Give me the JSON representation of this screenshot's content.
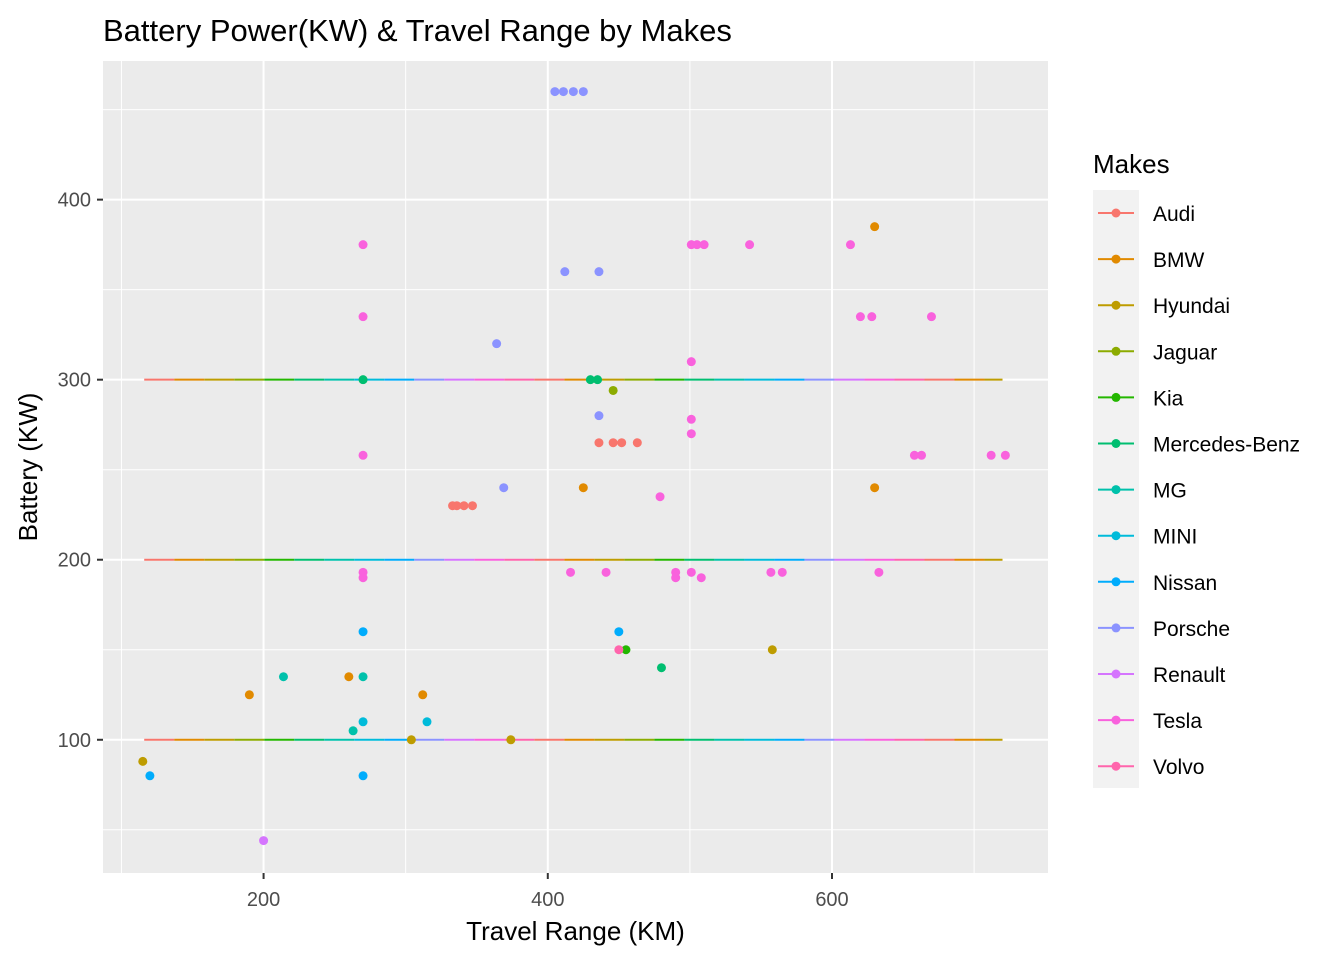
{
  "chart_data": {
    "type": "scatter",
    "title": "Battery Power(KW) & Travel Range by Makes",
    "xlabel": "Travel Range (KM)",
    "ylabel": "Battery (KW)",
    "xlim": [
      87,
      752
    ],
    "ylim": [
      26,
      477
    ],
    "x_ticks": [
      200,
      400,
      600
    ],
    "y_ticks": [
      100,
      200,
      300,
      400
    ],
    "grid": true,
    "background": "#EBEBEB",
    "legend": {
      "title": "Makes",
      "position": "right"
    },
    "reference_lines": {
      "y_values": [
        100,
        200,
        300
      ],
      "x_start": 116,
      "x_end": 720,
      "segments_per_make": 13
    },
    "series": [
      {
        "name": "Audi",
        "color": "#F8766D",
        "points": [
          [
            333,
            230
          ],
          [
            336,
            230
          ],
          [
            341,
            230
          ],
          [
            347,
            230
          ],
          [
            436,
            265
          ],
          [
            446,
            265
          ],
          [
            452,
            265
          ],
          [
            463,
            265
          ]
        ]
      },
      {
        "name": "BMW",
        "color": "#E18A00",
        "points": [
          [
            190,
            125
          ],
          [
            260,
            135
          ],
          [
            312,
            125
          ],
          [
            425,
            240
          ],
          [
            630,
            385
          ],
          [
            630,
            240
          ]
        ]
      },
      {
        "name": "Hyundai",
        "color": "#BE9C00",
        "points": [
          [
            115,
            88
          ],
          [
            304,
            100
          ],
          [
            374,
            100
          ],
          [
            558,
            150
          ]
        ]
      },
      {
        "name": "Jaguar",
        "color": "#8CAB00",
        "points": [
          [
            446,
            294
          ]
        ]
      },
      {
        "name": "Kia",
        "color": "#24B700",
        "points": [
          [
            455,
            150
          ]
        ]
      },
      {
        "name": "Mercedes-Benz",
        "color": "#00BE70",
        "points": [
          [
            270,
            300
          ],
          [
            430,
            300
          ],
          [
            435,
            300
          ],
          [
            480,
            140
          ]
        ]
      },
      {
        "name": "MG",
        "color": "#00C1AB",
        "points": [
          [
            214,
            135
          ],
          [
            263,
            105
          ],
          [
            270,
            135
          ]
        ]
      },
      {
        "name": "MINI",
        "color": "#00BBDA",
        "points": [
          [
            270,
            110
          ],
          [
            315,
            110
          ]
        ]
      },
      {
        "name": "Nissan",
        "color": "#00ACFC",
        "points": [
          [
            120,
            80
          ],
          [
            270,
            80
          ],
          [
            270,
            160
          ],
          [
            450,
            160
          ]
        ]
      },
      {
        "name": "Porsche",
        "color": "#8B93FF",
        "points": [
          [
            405,
            460
          ],
          [
            411,
            460
          ],
          [
            418,
            460
          ],
          [
            425,
            460
          ],
          [
            412,
            360
          ],
          [
            436,
            360
          ],
          [
            364,
            320
          ],
          [
            436,
            280
          ],
          [
            369,
            240
          ]
        ]
      },
      {
        "name": "Renault",
        "color": "#D575FE",
        "points": [
          [
            200,
            44
          ]
        ]
      },
      {
        "name": "Tesla",
        "color": "#F962DD",
        "points": [
          [
            270,
            375
          ],
          [
            270,
            335
          ],
          [
            270,
            258
          ],
          [
            270,
            193
          ],
          [
            270,
            190
          ],
          [
            416,
            193
          ],
          [
            441,
            193
          ],
          [
            479,
            235
          ],
          [
            490,
            193
          ],
          [
            490,
            190
          ],
          [
            501,
            375
          ],
          [
            505,
            375
          ],
          [
            510,
            375
          ],
          [
            501,
            310
          ],
          [
            501,
            278
          ],
          [
            501,
            270
          ],
          [
            501,
            193
          ],
          [
            508,
            190
          ],
          [
            542,
            375
          ],
          [
            557,
            193
          ],
          [
            565,
            193
          ],
          [
            613,
            375
          ],
          [
            620,
            335
          ],
          [
            628,
            335
          ],
          [
            633,
            193
          ],
          [
            670,
            335
          ],
          [
            658,
            258
          ],
          [
            663,
            258
          ],
          [
            712,
            258
          ],
          [
            722,
            258
          ]
        ]
      },
      {
        "name": "Volvo",
        "color": "#FF65AC",
        "points": [
          [
            450,
            150
          ]
        ]
      }
    ]
  }
}
